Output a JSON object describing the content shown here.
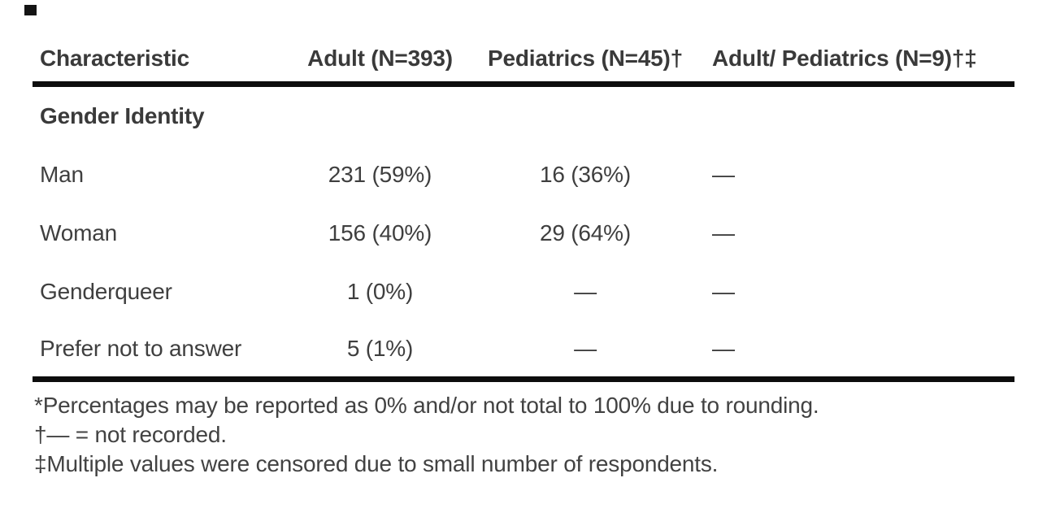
{
  "page": {
    "background_color": "#ffffff",
    "text_color": "#3f3f3f",
    "bold_text_color": "#3a3a3a",
    "rule_color": "#0d0d0d"
  },
  "table": {
    "header": {
      "characteristic": "Characteristic",
      "adult": "Adult (N=393)",
      "pediatrics": "Pediatrics (N=45)†",
      "adult_pediatrics": "Adult/ Pediatrics (N=9)†‡"
    },
    "section_label": "Gender Identity",
    "rows": [
      {
        "label": "Man",
        "adult": "231 (59%)",
        "pediatrics": "16 (36%)",
        "adult_pediatrics": "—"
      },
      {
        "label": "Woman",
        "adult": "156 (40%)",
        "pediatrics": "29 (64%)",
        "adult_pediatrics": "—"
      },
      {
        "label": "Genderqueer",
        "adult": "1 (0%)",
        "pediatrics": "—",
        "adult_pediatrics": "—"
      },
      {
        "label": "Prefer not to answer",
        "adult": "5 (1%)",
        "pediatrics": "—",
        "adult_pediatrics": "—"
      }
    ],
    "footnotes": [
      "*Percentages may be reported as 0% and/or not total to 100% due to rounding.",
      "†— = not recorded.",
      "‡Multiple values were censored due to small number of respondents."
    ]
  }
}
